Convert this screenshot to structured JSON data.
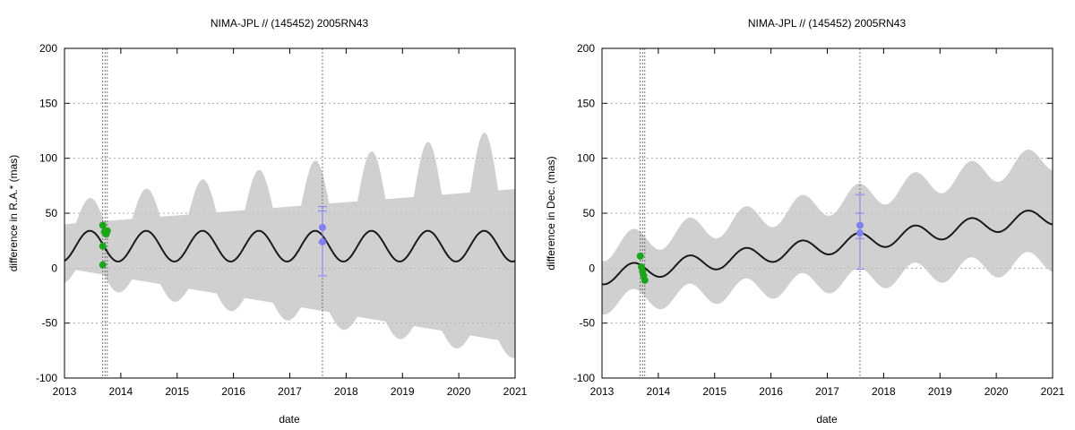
{
  "chart_data": [
    {
      "type": "line",
      "title": "NIMA-JPL // (145452) 2005RN43",
      "xlabel": "date",
      "ylabel": "difference in R.A.* (mas)",
      "xlim": [
        2013,
        2021
      ],
      "ylim": [
        -100,
        200
      ],
      "xticks": [
        "2013",
        "2014",
        "2015",
        "2016",
        "2017",
        "2018",
        "2019",
        "2020",
        "2021"
      ],
      "yticks": [
        "-100",
        "-50",
        "0",
        "50",
        "100",
        "150",
        "200"
      ],
      "grid": true,
      "colors": {
        "band": "#d0d0d0",
        "curve": "#1a1a1a",
        "green": "#1aa61a",
        "blue": "#8080f0",
        "vline": "#555555"
      },
      "curve": {
        "mean": 20,
        "amplitude": 14,
        "period_years": 1.0,
        "phase_peak": 2013.45
      },
      "band": {
        "upper_base": 40,
        "upper_growth": 4.0,
        "upper_amp": 20,
        "upper_amp_growth": 4.5,
        "lower_base": 0,
        "lower_growth": -8.5,
        "lower_amp": 14
      },
      "vertical_lines": [
        2013.68,
        2013.72,
        2013.76,
        2017.58
      ],
      "green_points": [
        {
          "x": 2013.68,
          "y": 39
        },
        {
          "x": 2013.71,
          "y": 33
        },
        {
          "x": 2013.74,
          "y": 31
        },
        {
          "x": 2013.76,
          "y": 34
        },
        {
          "x": 2013.68,
          "y": 20
        },
        {
          "x": 2013.68,
          "y": 3
        }
      ],
      "blue_points": [
        {
          "x": 2017.58,
          "y": 37,
          "err_low": 23,
          "err_high": 56
        },
        {
          "x": 2017.58,
          "y": 24,
          "err_low": -7,
          "err_high": 52
        }
      ]
    },
    {
      "type": "line",
      "title": "NIMA-JPL // (145452) 2005RN43",
      "xlabel": "date",
      "ylabel": "difference in Dec. (mas)",
      "xlim": [
        2013,
        2021
      ],
      "ylim": [
        -100,
        200
      ],
      "xticks": [
        "2013",
        "2014",
        "2015",
        "2016",
        "2017",
        "2018",
        "2019",
        "2020",
        "2021"
      ],
      "yticks": [
        "-100",
        "-50",
        "0",
        "50",
        "100",
        "150",
        "200"
      ],
      "grid": true,
      "colors": {
        "band": "#d0d0d0",
        "curve": "#1a1a1a",
        "green": "#1aa61a",
        "blue": "#8080f0",
        "vline": "#555555"
      },
      "curve": {
        "start": -7,
        "slope": 6.8,
        "amplitude": 8,
        "period_years": 1.0,
        "phase_peak": 2013.55
      },
      "band": {
        "upper_offset": 25,
        "upper_growth": 3.5,
        "upper_amp": 8,
        "lower_offset": -25,
        "lower_growth": -2.0,
        "lower_amp": 8
      },
      "vertical_lines": [
        2013.68,
        2013.72,
        2013.76,
        2017.58
      ],
      "green_points": [
        {
          "x": 2013.68,
          "y": 11
        },
        {
          "x": 2013.7,
          "y": 1
        },
        {
          "x": 2013.72,
          "y": -3
        },
        {
          "x": 2013.74,
          "y": -7
        },
        {
          "x": 2013.76,
          "y": -11
        }
      ],
      "blue_points": [
        {
          "x": 2017.58,
          "y": 39,
          "err_low": 27,
          "err_high": 67
        },
        {
          "x": 2017.58,
          "y": 32,
          "err_low": -1,
          "err_high": 50
        }
      ]
    }
  ]
}
